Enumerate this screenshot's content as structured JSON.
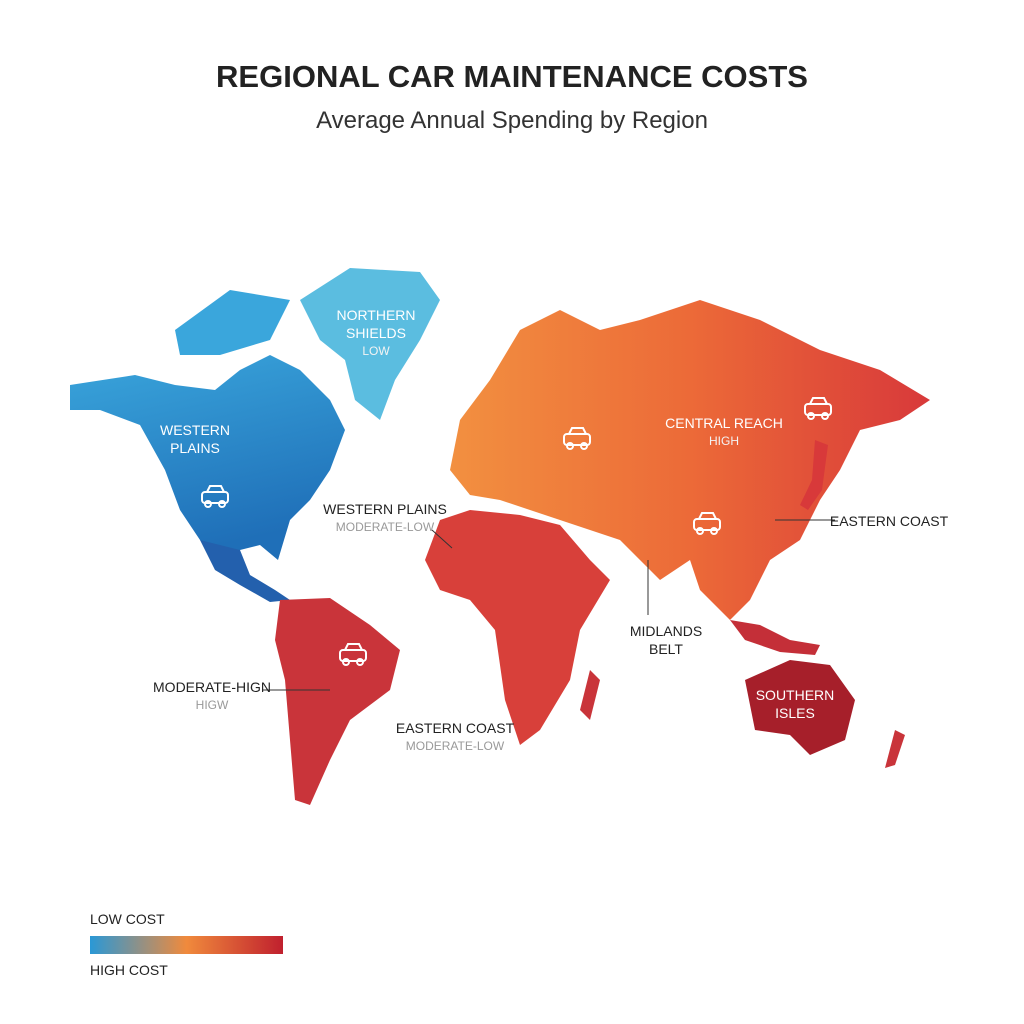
{
  "header": {
    "title": "REGIONAL CAR MAINTENANCE COSTS",
    "subtitle": "Average Annual Spending by Region"
  },
  "regions": [
    {
      "label": "NORTHERN SHIELDS",
      "sublabel": "LOW"
    },
    {
      "label": "WESTERN PLAINS"
    },
    {
      "label": "CENTRAL REACH",
      "sublabel": "HIGH"
    },
    {
      "label": "EASTERN COAST"
    },
    {
      "label": "WESTERN PLAINS",
      "sublabel": "MODERATE-LOW"
    },
    {
      "label": "MIDLANDS BELT"
    },
    {
      "label": "MODERATE-HIGN",
      "sublabel": "HIGW"
    },
    {
      "label": "SOUTHERN ISLES"
    },
    {
      "label": "EASTERN COAST",
      "sublabel": "MODERATE-LOW"
    }
  ],
  "legend": {
    "low": "LOW COST",
    "high": "HIGH COST"
  }
}
